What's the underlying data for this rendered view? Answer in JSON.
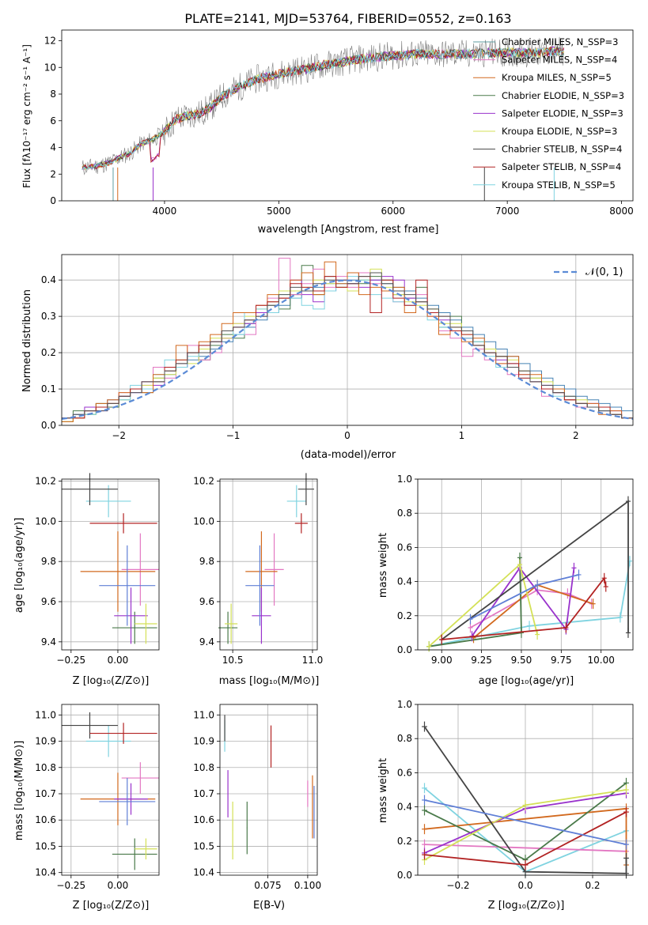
{
  "title": "PLATE=2141, MJD=53764, FIBERID=0552, z=0.163",
  "series_colors": [
    "#5f9ea0",
    "#4682b4",
    "#d2691e",
    "#228b22",
    "#9932cc",
    "#c8d64a",
    "#444444",
    "#b22222",
    "#7fd3e0"
  ],
  "chart_data": [
    {
      "type": "line",
      "title": "PLATE=2141, MJD=53764, FIBERID=0552, z=0.163",
      "xlabel": "wavelength [Angstrom, rest frame]",
      "ylabel": "Flux [fλ10⁻¹⁷ erg cm⁻² s⁻¹ A⁻¹]",
      "xlim": [
        3100,
        8100
      ],
      "ylim": [
        0,
        12.8
      ],
      "xticks": [
        4000,
        5000,
        6000,
        7000,
        8000
      ],
      "yticks": [
        0,
        2,
        4,
        6,
        8,
        10,
        12
      ],
      "grid": false,
      "legend_position": "top-right",
      "legend": [
        "Chabrier MILES, N_SSP=3",
        "Salpeter MILES, N_SSP=4",
        "Kroupa MILES, N_SSP=5",
        "Chabrier ELODIE, N_SSP=3",
        "Salpeter ELODIE, N_SSP=3",
        "Kroupa ELODIE, N_SSP=3",
        "Chabrier STELIB, N_SSP=4",
        "Salpeter STELIB, N_SSP=4",
        "Kroupa STELIB, N_SSP=5"
      ],
      "legend_colors": [
        "#5f9ea0",
        "#e377c2",
        "#d2691e",
        "#4a7a4a",
        "#9932cc",
        "#d4e157",
        "#444444",
        "#b22222",
        "#7fd3e0"
      ],
      "x": [
        3300,
        3400,
        3500,
        3600,
        3700,
        3800,
        3900,
        4000,
        4100,
        4200,
        4300,
        4400,
        4500,
        4600,
        4700,
        4800,
        4900,
        5000,
        5100,
        5200,
        5300,
        5400,
        5500,
        5600,
        5700,
        5800,
        5900,
        6000,
        6100,
        6200,
        6300,
        6400,
        6500,
        6600,
        6700,
        6800,
        6900,
        7000,
        7100,
        7200,
        7300,
        7400,
        7500
      ],
      "flux": [
        2.5,
        2.6,
        2.8,
        3.2,
        3.6,
        4.3,
        4.6,
        5.2,
        6.1,
        6.4,
        6.5,
        7.0,
        7.8,
        8.3,
        8.7,
        9.1,
        9.3,
        9.5,
        9.7,
        9.8,
        10.0,
        10.2,
        10.3,
        10.5,
        10.6,
        10.7,
        10.8,
        10.9,
        10.9,
        11.0,
        11.0,
        11.0,
        11.0,
        11.0,
        11.0,
        11.1,
        11.1,
        11.1,
        11.1,
        11.1,
        11.1,
        11.2,
        11.2
      ],
      "xlim_note": "",
      "ticklabels_x": [
        "4000",
        "5000",
        "6000",
        "7000",
        "8000"
      ],
      "ticklabels_y": [
        "0",
        "2",
        "4",
        "6",
        "8",
        "10",
        "12"
      ]
    },
    {
      "type": "line",
      "xlabel": "(data-model)/error",
      "ylabel": "Normed distribution",
      "xlim": [
        -2.5,
        2.5
      ],
      "ylim": [
        0,
        0.47
      ],
      "xticks": [
        -2,
        -1,
        0,
        1,
        2
      ],
      "yticks": [
        0.0,
        0.1,
        0.2,
        0.3,
        0.4
      ],
      "ticklabels_x": [
        "−2",
        "−1",
        "0",
        "1",
        "2"
      ],
      "ticklabels_y": [
        "0.0",
        "0.1",
        "0.2",
        "0.3",
        "0.4"
      ],
      "grid": true,
      "legend_position": "top-right",
      "legend": [
        "𝒩(0, 1)"
      ],
      "bin_edges_start": -2.5,
      "bin_width": 0.1,
      "histograms": [
        [
          0.02,
          0.03,
          0.04,
          0.05,
          0.06,
          0.07,
          0.09,
          0.1,
          0.12,
          0.14,
          0.16,
          0.18,
          0.19,
          0.21,
          0.23,
          0.25,
          0.27,
          0.29,
          0.31,
          0.33,
          0.35,
          0.37,
          0.38,
          0.39,
          0.39,
          0.4,
          0.4,
          0.4,
          0.39,
          0.38,
          0.37,
          0.35,
          0.33,
          0.31,
          0.29,
          0.27,
          0.25,
          0.23,
          0.21,
          0.19,
          0.17,
          0.15,
          0.13,
          0.11,
          0.1,
          0.08,
          0.07,
          0.06,
          0.05,
          0.04
        ],
        [
          0.01,
          0.04,
          0.03,
          0.06,
          0.05,
          0.08,
          0.1,
          0.09,
          0.13,
          0.15,
          0.17,
          0.2,
          0.18,
          0.22,
          0.25,
          0.24,
          0.28,
          0.3,
          0.33,
          0.32,
          0.36,
          0.44,
          0.36,
          0.41,
          0.38,
          0.42,
          0.39,
          0.41,
          0.4,
          0.36,
          0.35,
          0.38,
          0.31,
          0.27,
          0.3,
          0.24,
          0.23,
          0.2,
          0.19,
          0.16,
          0.15,
          0.13,
          0.1,
          0.09,
          0.07,
          0.06,
          0.05,
          0.04,
          0.03,
          0.02
        ],
        [
          0.02,
          0.03,
          0.05,
          0.04,
          0.07,
          0.08,
          0.09,
          0.12,
          0.11,
          0.15,
          0.16,
          0.2,
          0.21,
          0.23,
          0.24,
          0.27,
          0.28,
          0.31,
          0.34,
          0.35,
          0.4,
          0.36,
          0.34,
          0.37,
          0.4,
          0.39,
          0.38,
          0.4,
          0.41,
          0.4,
          0.35,
          0.34,
          0.3,
          0.29,
          0.26,
          0.24,
          0.22,
          0.2,
          0.18,
          0.17,
          0.14,
          0.12,
          0.11,
          0.09,
          0.08,
          0.06,
          0.06,
          0.04,
          0.04,
          0.02
        ],
        [
          0.02,
          0.02,
          0.04,
          0.05,
          0.06,
          0.09,
          0.1,
          0.11,
          0.16,
          0.13,
          0.17,
          0.22,
          0.18,
          0.2,
          0.24,
          0.28,
          0.25,
          0.3,
          0.35,
          0.46,
          0.36,
          0.39,
          0.43,
          0.38,
          0.41,
          0.38,
          0.42,
          0.39,
          0.37,
          0.34,
          0.33,
          0.36,
          0.3,
          0.26,
          0.24,
          0.19,
          0.21,
          0.18,
          0.17,
          0.14,
          0.15,
          0.12,
          0.08,
          0.1,
          0.07,
          0.05,
          0.06,
          0.04,
          0.03,
          0.02
        ],
        [
          0.01,
          0.02,
          0.03,
          0.05,
          0.06,
          0.07,
          0.1,
          0.11,
          0.13,
          0.14,
          0.18,
          0.17,
          0.21,
          0.24,
          0.24,
          0.28,
          0.3,
          0.32,
          0.34,
          0.37,
          0.37,
          0.38,
          0.4,
          0.39,
          0.38,
          0.37,
          0.4,
          0.43,
          0.38,
          0.36,
          0.34,
          0.33,
          0.32,
          0.28,
          0.28,
          0.25,
          0.22,
          0.21,
          0.19,
          0.18,
          0.15,
          0.13,
          0.12,
          0.1,
          0.08,
          0.07,
          0.05,
          0.05,
          0.03,
          0.02
        ],
        [
          0.02,
          0.03,
          0.03,
          0.05,
          0.07,
          0.07,
          0.11,
          0.1,
          0.14,
          0.18,
          0.16,
          0.19,
          0.22,
          0.23,
          0.26,
          0.25,
          0.31,
          0.32,
          0.31,
          0.36,
          0.35,
          0.33,
          0.32,
          0.37,
          0.39,
          0.41,
          0.4,
          0.36,
          0.35,
          0.34,
          0.33,
          0.34,
          0.29,
          0.27,
          0.26,
          0.24,
          0.23,
          0.19,
          0.16,
          0.17,
          0.13,
          0.12,
          0.1,
          0.08,
          0.08,
          0.06,
          0.05,
          0.04,
          0.03,
          0.02
        ],
        [
          0.01,
          0.02,
          0.04,
          0.06,
          0.07,
          0.09,
          0.1,
          0.09,
          0.14,
          0.15,
          0.22,
          0.2,
          0.23,
          0.25,
          0.28,
          0.31,
          0.31,
          0.33,
          0.36,
          0.35,
          0.4,
          0.42,
          0.36,
          0.45,
          0.39,
          0.42,
          0.36,
          0.38,
          0.37,
          0.38,
          0.31,
          0.34,
          0.3,
          0.25,
          0.27,
          0.23,
          0.24,
          0.2,
          0.17,
          0.19,
          0.14,
          0.14,
          0.1,
          0.1,
          0.07,
          0.06,
          0.06,
          0.03,
          0.04,
          0.02
        ],
        [
          0.02,
          0.02,
          0.04,
          0.05,
          0.06,
          0.08,
          0.1,
          0.12,
          0.12,
          0.16,
          0.18,
          0.2,
          0.22,
          0.23,
          0.26,
          0.27,
          0.29,
          0.33,
          0.34,
          0.35,
          0.39,
          0.38,
          0.37,
          0.41,
          0.38,
          0.39,
          0.41,
          0.31,
          0.4,
          0.35,
          0.33,
          0.4,
          0.31,
          0.3,
          0.26,
          0.25,
          0.22,
          0.2,
          0.19,
          0.17,
          0.13,
          0.12,
          0.1,
          0.09,
          0.07,
          0.06,
          0.05,
          0.05,
          0.03,
          0.02
        ],
        [
          0.02,
          0.03,
          0.04,
          0.04,
          0.06,
          0.08,
          0.09,
          0.12,
          0.12,
          0.15,
          0.17,
          0.2,
          0.2,
          0.23,
          0.26,
          0.27,
          0.29,
          0.3,
          0.33,
          0.36,
          0.38,
          0.37,
          0.39,
          0.4,
          0.4,
          0.39,
          0.41,
          0.42,
          0.39,
          0.37,
          0.36,
          0.34,
          0.32,
          0.3,
          0.27,
          0.26,
          0.22,
          0.2,
          0.19,
          0.16,
          0.15,
          0.12,
          0.11,
          0.09,
          0.08,
          0.06,
          0.05,
          0.04,
          0.03,
          0.02
        ]
      ]
    },
    {
      "type": "scatter",
      "xlabel": "Z [log₁₀(Z/Z⊙)]",
      "ylabel": "age  [log₁₀(age/yr)]",
      "xlim": [
        -0.3,
        0.22
      ],
      "ylim": [
        9.36,
        10.21
      ],
      "ticklabels_x": [
        "−0.25",
        "0.00"
      ],
      "ticklabels_y": [
        "9.4",
        "9.6",
        "9.8",
        "10.0",
        "10.2"
      ],
      "grid": true
    },
    {
      "type": "scatter",
      "xlabel": "mass [log₁₀(M/M⊙)]",
      "ylabel": "",
      "xlim": [
        10.42,
        11.03
      ],
      "ylim": [
        9.36,
        10.21
      ],
      "ticklabels_x": [
        "10.5",
        "11.0"
      ],
      "ticklabels_y": [
        "9.4",
        "9.6",
        "9.8",
        "10.0",
        "10.2"
      ],
      "grid": true
    },
    {
      "type": "line",
      "xlabel": "age  [log₁₀(age/yr)]",
      "ylabel": "mass weight",
      "xlim": [
        8.85,
        10.2
      ],
      "ylim": [
        0,
        1.0
      ],
      "ticklabels_x": [
        "9.00",
        "9.25",
        "9.50",
        "9.75",
        "10.00"
      ],
      "ticklabels_y": [
        "0.0",
        "0.2",
        "0.4",
        "0.6",
        "0.8",
        "1.0"
      ],
      "grid": true
    },
    {
      "type": "scatter",
      "xlabel": "Z [log₁₀(Z/Z⊙)]",
      "ylabel": "mass [log₁₀(M/M⊙)]",
      "xlim": [
        -0.3,
        0.22
      ],
      "ylim": [
        10.39,
        11.04
      ],
      "ticklabels_x": [
        "−0.25",
        "0.00"
      ],
      "ticklabels_y": [
        "10.4",
        "10.5",
        "10.6",
        "10.7",
        "10.8",
        "10.9",
        "11.0"
      ],
      "grid": true
    },
    {
      "type": "scatter",
      "xlabel": "E(B-V)",
      "ylabel": "",
      "xlim": [
        0.045,
        0.106
      ],
      "ylim": [
        10.39,
        11.04
      ],
      "ticklabels_x": [
        "0.075",
        "0.100"
      ],
      "ticklabels_y": [
        "10.4",
        "10.5",
        "10.6",
        "10.7",
        "10.8",
        "10.9",
        "11.0"
      ],
      "grid": true
    },
    {
      "type": "line",
      "xlabel": "Z [log₁₀(Z/Z⊙)]",
      "ylabel": "mass weight",
      "xlim": [
        -0.32,
        0.32
      ],
      "ylim": [
        0,
        1.0
      ],
      "ticklabels_x": [
        "−0.2",
        "0.0",
        "0.2"
      ],
      "ticklabels_y": [
        "0.0",
        "0.2",
        "0.4",
        "0.6",
        "0.8",
        "1.0"
      ],
      "grid": true
    }
  ],
  "fits": {
    "colors": [
      "#7fd3e0",
      "#e377c2",
      "#d2691e",
      "#4a7a4a",
      "#9932cc",
      "#d4e157",
      "#444444",
      "#b22222",
      "#5f7fd6"
    ],
    "z": [
      -0.05,
      0.12,
      0.0,
      0.09,
      0.07,
      0.15,
      -0.15,
      0.03,
      0.05
    ],
    "z_err": [
      0.12,
      0.1,
      0.2,
      0.12,
      0.09,
      0.06,
      0.15,
      0.18,
      0.15
    ],
    "age": [
      10.1,
      9.76,
      9.75,
      9.47,
      9.53,
      9.49,
      10.16,
      9.99,
      9.68
    ],
    "age_err": [
      0.08,
      0.18,
      0.2,
      0.08,
      0.14,
      0.1,
      0.08,
      0.05,
      0.2
    ],
    "mass": [
      10.9,
      10.76,
      10.68,
      10.47,
      10.68,
      10.49,
      10.96,
      10.93,
      10.67
    ],
    "mass_err": [
      0.06,
      0.06,
      0.1,
      0.06,
      0.06,
      0.04,
      0.05,
      0.04,
      0.09
    ],
    "ebv": [
      0.048,
      0.1,
      0.103,
      0.062,
      0.05,
      0.053,
      0.048,
      0.077,
      0.104
    ],
    "ebv_mass": [
      10.92,
      10.7,
      10.65,
      10.57,
      10.7,
      10.56,
      10.95,
      10.88,
      10.63
    ],
    "ebv_mass_err": [
      0.06,
      0.05,
      0.12,
      0.1,
      0.09,
      0.11,
      0.05,
      0.08,
      0.1
    ],
    "mw_age": [
      [
        [
          8.92,
          0.02
        ],
        [
          9.55,
          0.14
        ],
        [
          10.12,
          0.19
        ],
        [
          10.18,
          0.52
        ]
      ],
      [
        [
          9.18,
          0.13
        ],
        [
          9.6,
          0.35
        ],
        [
          9.79,
          0.33
        ],
        [
          9.94,
          0.27
        ]
      ],
      [
        [
          9.2,
          0.07
        ],
        [
          9.6,
          0.38
        ],
        [
          9.95,
          0.27
        ]
      ],
      [
        [
          8.92,
          0.02
        ],
        [
          9.5,
          0.1
        ],
        [
          9.49,
          0.54
        ]
      ],
      [
        [
          9.19,
          0.08
        ],
        [
          9.49,
          0.48
        ],
        [
          9.78,
          0.12
        ],
        [
          9.83,
          0.48
        ]
      ],
      [
        [
          8.92,
          0.02
        ],
        [
          9.49,
          0.5
        ],
        [
          9.6,
          0.09
        ]
      ],
      [
        [
          9.0,
          0.06
        ],
        [
          10.17,
          0.87
        ],
        [
          10.17,
          0.1
        ]
      ],
      [
        [
          9.0,
          0.06
        ],
        [
          9.78,
          0.13
        ],
        [
          10.02,
          0.42
        ],
        [
          10.03,
          0.37
        ]
      ],
      [
        [
          9.18,
          0.18
        ],
        [
          9.6,
          0.38
        ],
        [
          9.86,
          0.44
        ]
      ]
    ],
    "mw_z": [
      [
        [
          -0.3,
          0.51
        ],
        [
          0.0,
          0.02
        ],
        [
          0.3,
          0.26
        ]
      ],
      [
        [
          -0.3,
          0.18
        ],
        [
          0.3,
          0.14
        ]
      ],
      [
        [
          -0.3,
          0.27
        ],
        [
          0.3,
          0.39
        ],
        [
          0.3,
          0.06
        ]
      ],
      [
        [
          -0.3,
          0.38
        ],
        [
          0.0,
          0.09
        ],
        [
          0.3,
          0.54
        ]
      ],
      [
        [
          -0.3,
          0.13
        ],
        [
          0.0,
          0.39
        ],
        [
          0.3,
          0.48
        ]
      ],
      [
        [
          -0.3,
          0.09
        ],
        [
          0.0,
          0.41
        ],
        [
          0.3,
          0.5
        ]
      ],
      [
        [
          -0.3,
          0.87
        ],
        [
          0.0,
          0.02
        ],
        [
          0.3,
          0.01
        ],
        [
          0.3,
          0.1
        ]
      ],
      [
        [
          -0.3,
          0.12
        ],
        [
          0.0,
          0.06
        ],
        [
          0.3,
          0.37
        ]
      ],
      [
        [
          -0.3,
          0.44
        ],
        [
          0.3,
          0.18
        ]
      ]
    ]
  }
}
